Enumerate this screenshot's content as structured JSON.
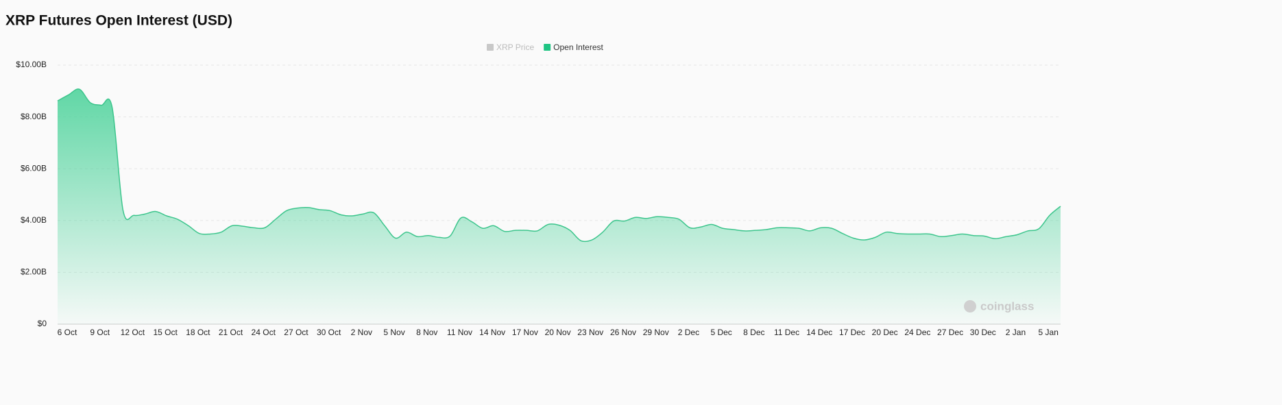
{
  "chart_data": {
    "type": "area",
    "title": "XRP Futures Open Interest (USD)",
    "legend": [
      {
        "name": "XRP Price",
        "color": "#c8c8c8"
      },
      {
        "name": "Open Interest",
        "color": "#1fc483"
      }
    ],
    "watermark": "coinglass",
    "categories": [
      "6 Oct",
      null,
      null,
      "9 Oct",
      null,
      null,
      "12 Oct",
      null,
      null,
      "15 Oct",
      null,
      null,
      "18 Oct",
      null,
      null,
      "21 Oct",
      null,
      null,
      "24 Oct",
      null,
      null,
      "27 Oct",
      null,
      null,
      "30 Oct",
      null,
      null,
      "2 Nov",
      null,
      null,
      "5 Nov",
      null,
      null,
      "8 Nov",
      null,
      null,
      "11 Nov",
      null,
      null,
      "14 Nov",
      null,
      null,
      "17 Nov",
      null,
      null,
      "20 Nov",
      null,
      null,
      "23 Nov",
      null,
      null,
      "26 Nov",
      null,
      null,
      "29 Nov",
      null,
      null,
      "2 Dec",
      null,
      null,
      "5 Dec",
      null,
      null,
      "8 Dec",
      null,
      null,
      "11 Dec",
      null,
      null,
      "14 Dec",
      null,
      null,
      "17 Dec",
      null,
      null,
      "20 Dec",
      null,
      null,
      "24 Dec",
      null,
      null,
      "27 Dec",
      null,
      null,
      "30 Dec",
      null,
      null,
      "2 Jan",
      null,
      null,
      "5 Jan",
      null,
      null
    ],
    "series": [
      {
        "name": "Open Interest",
        "color": "#3cc58c",
        "values": [
          8620000000,
          8850000000,
          9070000000,
          8550000000,
          8450000000,
          8380000000,
          4400000000,
          4200000000,
          4250000000,
          4350000000,
          4180000000,
          4050000000,
          3800000000,
          3500000000,
          3480000000,
          3550000000,
          3800000000,
          3780000000,
          3720000000,
          3720000000,
          4050000000,
          4380000000,
          4480000000,
          4500000000,
          4420000000,
          4380000000,
          4220000000,
          4180000000,
          4250000000,
          4300000000,
          3800000000,
          3320000000,
          3550000000,
          3380000000,
          3420000000,
          3350000000,
          3400000000,
          4100000000,
          3950000000,
          3700000000,
          3800000000,
          3580000000,
          3620000000,
          3620000000,
          3600000000,
          3850000000,
          3820000000,
          3620000000,
          3220000000,
          3250000000,
          3550000000,
          3980000000,
          3980000000,
          4120000000,
          4080000000,
          4150000000,
          4120000000,
          4050000000,
          3720000000,
          3750000000,
          3850000000,
          3700000000,
          3650000000,
          3600000000,
          3620000000,
          3650000000,
          3720000000,
          3720000000,
          3700000000,
          3600000000,
          3720000000,
          3700000000,
          3500000000,
          3320000000,
          3250000000,
          3350000000,
          3550000000,
          3500000000,
          3480000000,
          3480000000,
          3480000000,
          3380000000,
          3420000000,
          3480000000,
          3420000000,
          3400000000,
          3300000000,
          3380000000,
          3450000000,
          3600000000,
          3680000000,
          4200000000,
          4550000000
        ]
      }
    ],
    "ylim": [
      0,
      10000000000
    ],
    "yticks": [
      {
        "value": 0,
        "label": "$0"
      },
      {
        "value": 2000000000,
        "label": "$2.00B"
      },
      {
        "value": 4000000000,
        "label": "$4.00B"
      },
      {
        "value": 6000000000,
        "label": "$6.00B"
      },
      {
        "value": 8000000000,
        "label": "$8.00B"
      },
      {
        "value": 10000000000,
        "label": "$10.00B"
      }
    ],
    "grid": true
  }
}
